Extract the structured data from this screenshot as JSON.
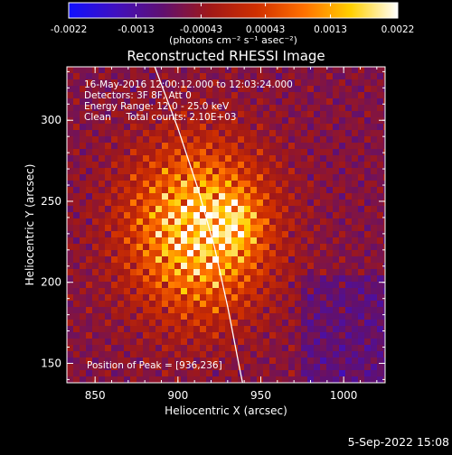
{
  "chart_data": {
    "type": "heatmap",
    "title": "Reconstructed RHESSI Image",
    "xlabel": "Heliocentric X (arcsec)",
    "ylabel": "Heliocentric Y (arcsec)",
    "xlim": [
      833,
      1025
    ],
    "ylim": [
      138,
      333
    ],
    "x_ticks": [
      850,
      900,
      950,
      1000
    ],
    "y_ticks": [
      150,
      200,
      250,
      300
    ],
    "x_tick_labels": [
      "850",
      "900",
      "950",
      "1000"
    ],
    "y_tick_labels": [
      "150",
      "200",
      "250",
      "300"
    ],
    "colorbar": {
      "range": [
        -0.0022,
        0.0022
      ],
      "ticks": [
        -0.0022,
        -0.0013,
        -0.00043,
        0.00043,
        0.0013,
        0.0022
      ],
      "tick_labels": [
        "-0.0022",
        "-0.0013",
        "-0.00043",
        "0.00043",
        "0.0013",
        "0.0022"
      ],
      "unit_label": "(photons cm⁻² s⁻¹ asec⁻²)",
      "colormap": "rainbow-to-hot",
      "stops": [
        "#1010ff",
        "#4010c0",
        "#601070",
        "#a01818",
        "#d03000",
        "#ff7000",
        "#ffd000",
        "#ffffff"
      ]
    },
    "annotations": {
      "time_range": "16-May-2016 12:00:12.000 to 12:03:24.000",
      "detectors": "Detectors: 3F 8F, Att 0",
      "energy_range": "Energy Range: 12.0 - 25.0 keV",
      "clean_counts": "Clean     Total counts: 2.10E+03",
      "peak_label": "Position of Peak = [936,236]"
    },
    "peak_position": [
      936,
      236
    ],
    "source_center": [
      912,
      232
    ],
    "limb_curve": [
      [
        886,
        333
      ],
      [
        900,
        295
      ],
      [
        912,
        258
      ],
      [
        922,
        222
      ],
      [
        930,
        185
      ],
      [
        937,
        148
      ],
      [
        939,
        138
      ]
    ],
    "grid": false
  },
  "footer": {
    "date": "5-Sep-2022 15:08"
  }
}
